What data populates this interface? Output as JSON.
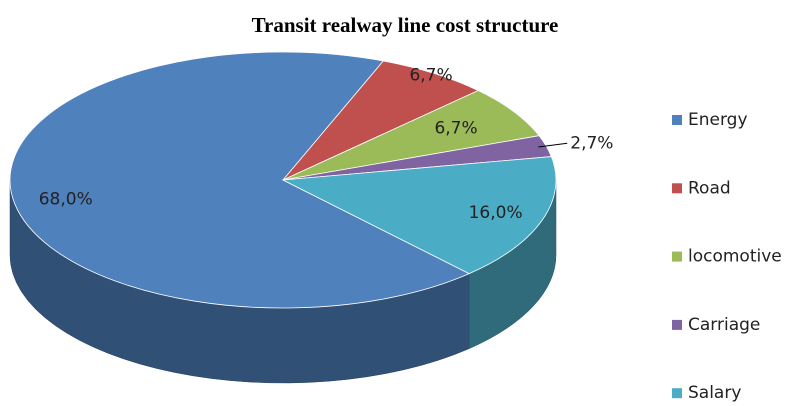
{
  "chart_data": {
    "type": "pie",
    "title": "Transit realway line cost structure",
    "categories": [
      "Energy",
      "Road",
      "locomotive",
      "Carriage",
      "Salary"
    ],
    "values": [
      68.0,
      6.7,
      6.7,
      2.7,
      16.0
    ],
    "value_labels": [
      "68,0%",
      "6,7%",
      "6,7%",
      "2,7%",
      "16,0%"
    ],
    "colors": [
      "#4f81bd",
      "#c0504d",
      "#9bbb59",
      "#8064a2",
      "#4bacc6"
    ],
    "legend": "right"
  }
}
